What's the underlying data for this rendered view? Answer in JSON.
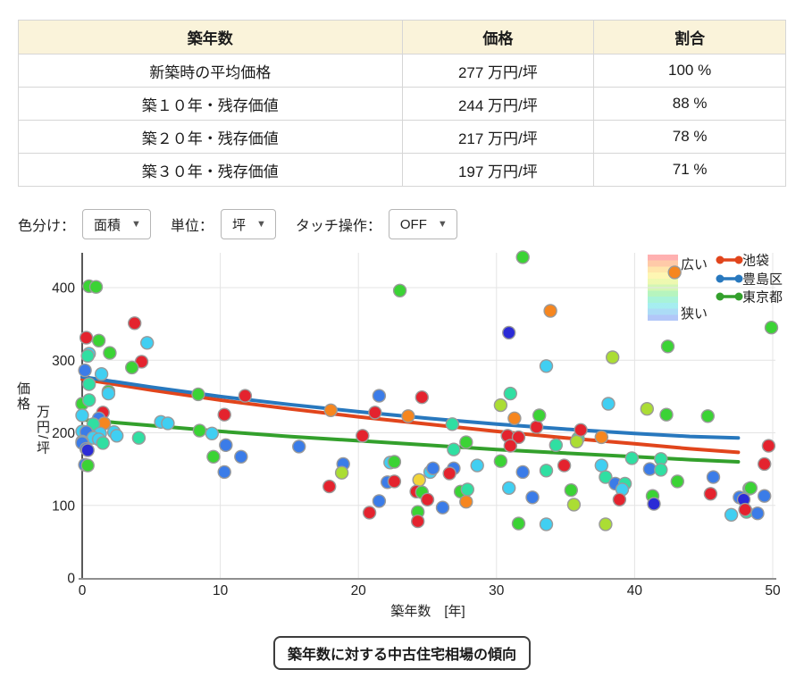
{
  "table": {
    "headers": [
      "築年数",
      "価格",
      "割合"
    ],
    "rows": [
      {
        "label": "新築時の平均価格",
        "price": "277 万円/坪",
        "ratio": "100 %"
      },
      {
        "label": "築１０年・残存価値",
        "price": "244 万円/坪",
        "ratio": "88 %"
      },
      {
        "label": "築２０年・残存価値",
        "price": "217 万円/坪",
        "ratio": "78 %"
      },
      {
        "label": "築３０年・残存価値",
        "price": "197 万円/坪",
        "ratio": "71 %"
      }
    ]
  },
  "controls": {
    "color_label": "色分け：",
    "color_value": "面積",
    "unit_label": "単位：",
    "unit_value": "坪",
    "touch_label": "タッチ操作：",
    "touch_value": "OFF",
    "chevron": "▼"
  },
  "caption": "築年数に対する中古住宅相場の傾向",
  "chart_data": {
    "type": "scatter",
    "xlabel": "築年数　[年]",
    "ylabel": "価格万円/坪",
    "ylabel_parts": [
      "価格",
      "万円/坪"
    ],
    "xlim": [
      0,
      50
    ],
    "ylim": [
      0,
      450
    ],
    "xticks": [
      0,
      10,
      20,
      30,
      40,
      50
    ],
    "yticks": [
      0,
      100,
      200,
      300,
      400
    ],
    "grid": true,
    "colorbar": {
      "top_label": "広い",
      "bottom_label": "狭い",
      "colors": [
        "#ff9d9d",
        "#ffbd92",
        "#ffdf96",
        "#fdf4a0",
        "#e9f79c",
        "#c8f4a2",
        "#a4f2ae",
        "#92f0cf",
        "#8fe9ec",
        "#97d3f4",
        "#9fb9f6"
      ]
    },
    "legend": [
      {
        "name": "池袋",
        "color": "#e1451c"
      },
      {
        "name": "豊島区",
        "color": "#2878be"
      },
      {
        "name": "東京都",
        "color": "#33a02c"
      }
    ],
    "trend_series": [
      {
        "name": "池袋",
        "color": "#e1451c",
        "points": [
          [
            0,
            274
          ],
          [
            5,
            259
          ],
          [
            10,
            245
          ],
          [
            15,
            233
          ],
          [
            20,
            222
          ],
          [
            25,
            212
          ],
          [
            30,
            202
          ],
          [
            35,
            193
          ],
          [
            40,
            185
          ],
          [
            44,
            178
          ],
          [
            47.5,
            173
          ]
        ]
      },
      {
        "name": "豊島区",
        "color": "#2878be",
        "points": [
          [
            0,
            277
          ],
          [
            5,
            263
          ],
          [
            10,
            250
          ],
          [
            15,
            239
          ],
          [
            20,
            229
          ],
          [
            25,
            220
          ],
          [
            30,
            212
          ],
          [
            35,
            205
          ],
          [
            40,
            199
          ],
          [
            44,
            195
          ],
          [
            47.5,
            193
          ]
        ]
      },
      {
        "name": "東京都",
        "color": "#33a02c",
        "points": [
          [
            0,
            218
          ],
          [
            5,
            210
          ],
          [
            10,
            202
          ],
          [
            15,
            195
          ],
          [
            20,
            189
          ],
          [
            25,
            183
          ],
          [
            30,
            177
          ],
          [
            35,
            172
          ],
          [
            40,
            167
          ],
          [
            44,
            163
          ],
          [
            47.5,
            160
          ]
        ]
      }
    ],
    "point_colors": {
      "red": "#e4232e",
      "orange": "#f6861f",
      "yellow": "#f2d53a",
      "ygreen": "#abdd34",
      "green": "#3bd335",
      "spring": "#30dfa2",
      "cyan": "#40cff2",
      "blue": "#3b7ce8",
      "navy": "#2b2bd6"
    },
    "points": [
      [
        0.5,
        402,
        "green"
      ],
      [
        1.0,
        401,
        "green"
      ],
      [
        0.3,
        331,
        "red"
      ],
      [
        1.2,
        327,
        "green"
      ],
      [
        3.8,
        351,
        "red"
      ],
      [
        4.7,
        324,
        "cyan"
      ],
      [
        0.5,
        309,
        "cyan"
      ],
      [
        2.0,
        310,
        "green"
      ],
      [
        0.4,
        306,
        "spring"
      ],
      [
        4.3,
        298,
        "red"
      ],
      [
        3.6,
        290,
        "green"
      ],
      [
        0.2,
        286,
        "blue"
      ],
      [
        1.4,
        281,
        "cyan"
      ],
      [
        0.5,
        267,
        "spring"
      ],
      [
        1.9,
        257,
        "green"
      ],
      [
        1.9,
        254,
        "cyan"
      ],
      [
        0,
        240,
        "green"
      ],
      [
        0.5,
        245,
        "spring"
      ],
      [
        1.5,
        228,
        "red"
      ],
      [
        0,
        224,
        "cyan"
      ],
      [
        1.2,
        220,
        "blue"
      ],
      [
        1.6,
        213,
        "orange"
      ],
      [
        0.8,
        212,
        "spring"
      ],
      [
        1.3,
        199,
        "cyan"
      ],
      [
        0,
        202,
        "cyan"
      ],
      [
        0.3,
        201,
        "blue"
      ],
      [
        2.3,
        201,
        "cyan"
      ],
      [
        0.8,
        193,
        "cyan"
      ],
      [
        1.2,
        191,
        "cyan"
      ],
      [
        0,
        188,
        "cyan"
      ],
      [
        0,
        186,
        "blue"
      ],
      [
        0.3,
        178,
        "blue"
      ],
      [
        0.4,
        176,
        "navy"
      ],
      [
        1.5,
        186,
        "spring"
      ],
      [
        4.1,
        193,
        "spring"
      ],
      [
        5.7,
        215,
        "cyan"
      ],
      [
        6.2,
        213,
        "cyan"
      ],
      [
        0.2,
        156,
        "blue"
      ],
      [
        0.4,
        155,
        "green"
      ],
      [
        2.5,
        196,
        "cyan"
      ],
      [
        8.4,
        253,
        "green"
      ],
      [
        11.8,
        251,
        "red"
      ],
      [
        10.3,
        225,
        "red"
      ],
      [
        8.5,
        203,
        "green"
      ],
      [
        9.4,
        199,
        "cyan"
      ],
      [
        10.4,
        183,
        "blue"
      ],
      [
        9.5,
        167,
        "green"
      ],
      [
        11.5,
        167,
        "blue"
      ],
      [
        10.3,
        146,
        "blue"
      ],
      [
        15.7,
        181,
        "blue"
      ],
      [
        18.9,
        157,
        "blue"
      ],
      [
        18.8,
        145,
        "ygreen"
      ],
      [
        17.9,
        126,
        "red"
      ],
      [
        20.3,
        196,
        "red"
      ],
      [
        18.0,
        231,
        "orange"
      ],
      [
        21.5,
        251,
        "blue"
      ],
      [
        21.2,
        228,
        "red"
      ],
      [
        23.0,
        396,
        "green"
      ],
      [
        24.6,
        249,
        "red"
      ],
      [
        23.6,
        223,
        "orange"
      ],
      [
        26.8,
        212,
        "spring"
      ],
      [
        26.9,
        177,
        "spring"
      ],
      [
        27.8,
        187,
        "green"
      ],
      [
        22.3,
        159,
        "cyan"
      ],
      [
        22.6,
        160,
        "green"
      ],
      [
        22.1,
        132,
        "blue"
      ],
      [
        22.6,
        133,
        "red"
      ],
      [
        24.4,
        135,
        "yellow"
      ],
      [
        25.2,
        146,
        "cyan"
      ],
      [
        25.4,
        151,
        "blue"
      ],
      [
        26.9,
        151,
        "blue"
      ],
      [
        26.6,
        144,
        "red"
      ],
      [
        24.2,
        119,
        "red"
      ],
      [
        24.6,
        118,
        "green"
      ],
      [
        25.0,
        108,
        "red"
      ],
      [
        27.4,
        119,
        "green"
      ],
      [
        27.9,
        122,
        "spring"
      ],
      [
        27.8,
        105,
        "orange"
      ],
      [
        26.1,
        97,
        "blue"
      ],
      [
        21.5,
        106,
        "blue"
      ],
      [
        20.8,
        90,
        "red"
      ],
      [
        24.3,
        91,
        "green"
      ],
      [
        24.3,
        78,
        "red"
      ],
      [
        28.6,
        155,
        "cyan"
      ],
      [
        30.9,
        338,
        "navy"
      ],
      [
        31.0,
        254,
        "spring"
      ],
      [
        30.3,
        238,
        "ygreen"
      ],
      [
        31.9,
        442,
        "green"
      ],
      [
        33.9,
        368,
        "orange"
      ],
      [
        33.6,
        292,
        "cyan"
      ],
      [
        38.4,
        304,
        "ygreen"
      ],
      [
        30.8,
        196,
        "red"
      ],
      [
        31.6,
        194,
        "red"
      ],
      [
        31.0,
        182,
        "red"
      ],
      [
        30.3,
        161,
        "green"
      ],
      [
        31.9,
        146,
        "blue"
      ],
      [
        30.9,
        124,
        "cyan"
      ],
      [
        32.6,
        111,
        "blue"
      ],
      [
        31.6,
        75,
        "green"
      ],
      [
        31.3,
        220,
        "orange"
      ],
      [
        32.9,
        208,
        "red"
      ],
      [
        33.1,
        224,
        "green"
      ],
      [
        33.6,
        74,
        "cyan"
      ],
      [
        37.9,
        74,
        "ygreen"
      ],
      [
        34.3,
        183,
        "spring"
      ],
      [
        34.9,
        155,
        "red"
      ],
      [
        35.9,
        192,
        "spring"
      ],
      [
        35.8,
        188,
        "ygreen"
      ],
      [
        36.1,
        204,
        "red"
      ],
      [
        37.6,
        194,
        "orange"
      ],
      [
        37.6,
        155,
        "cyan"
      ],
      [
        37.9,
        139,
        "spring"
      ],
      [
        38.6,
        130,
        "blue"
      ],
      [
        39.3,
        130,
        "spring"
      ],
      [
        39.1,
        122,
        "cyan"
      ],
      [
        35.4,
        121,
        "green"
      ],
      [
        38.9,
        108,
        "red"
      ],
      [
        35.6,
        101,
        "ygreen"
      ],
      [
        33.6,
        148,
        "spring"
      ],
      [
        38.1,
        240,
        "cyan"
      ],
      [
        40.9,
        233,
        "ygreen"
      ],
      [
        42.3,
        225,
        "green"
      ],
      [
        45.3,
        223,
        "green"
      ],
      [
        42.4,
        319,
        "green"
      ],
      [
        42.9,
        421,
        "orange"
      ],
      [
        49.9,
        345,
        "green"
      ],
      [
        39.8,
        165,
        "spring"
      ],
      [
        41.9,
        164,
        "spring"
      ],
      [
        41.1,
        150,
        "blue"
      ],
      [
        41.9,
        149,
        "spring"
      ],
      [
        43.1,
        133,
        "green"
      ],
      [
        45.7,
        139,
        "blue"
      ],
      [
        45.5,
        116,
        "red"
      ],
      [
        41.3,
        113,
        "green"
      ],
      [
        41.4,
        102,
        "navy"
      ],
      [
        47.6,
        111,
        "blue"
      ],
      [
        48.3,
        123,
        "spring"
      ],
      [
        48.4,
        124,
        "green"
      ],
      [
        47.9,
        108,
        "navy"
      ],
      [
        49.4,
        113,
        "blue"
      ],
      [
        47.0,
        87,
        "cyan"
      ],
      [
        48.1,
        91,
        "spring"
      ],
      [
        48.0,
        94,
        "red"
      ],
      [
        48.9,
        89,
        "blue"
      ],
      [
        49.7,
        182,
        "red"
      ],
      [
        49.4,
        157,
        "red"
      ]
    ]
  }
}
